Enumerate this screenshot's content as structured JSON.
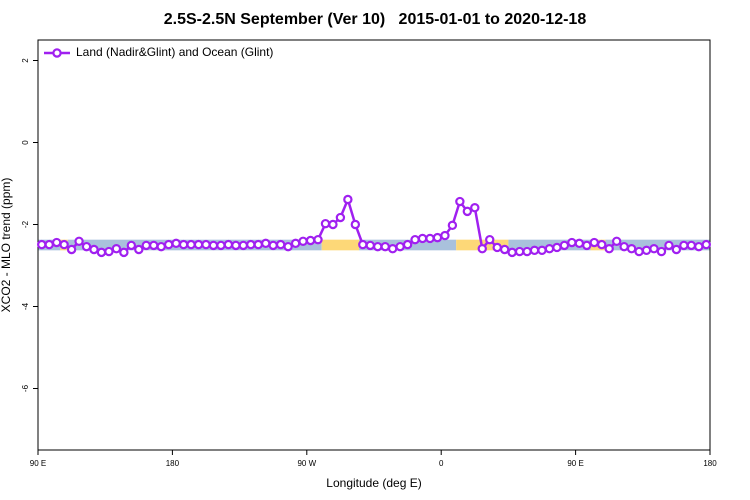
{
  "chart_data": {
    "type": "line",
    "title": "2.5S-2.5N September (Ver 10)   2015-01-01 to 2020-12-18",
    "x_label": "Longitude (deg E)",
    "y_label": "XCO2 - MLO trend (ppm)",
    "xlim": [
      90,
      540
    ],
    "xticks": [
      {
        "value": 90,
        "label": "90 E"
      },
      180,
      {
        "value": 270,
        "label": "90 W"
      },
      {
        "value": 360,
        "label": "0"
      },
      {
        "value": 450,
        "label": "90 E"
      },
      {
        "value": 540,
        "label": "180"
      }
    ],
    "ylim": [
      -7.5,
      2.5
    ],
    "yticks": [
      2,
      0,
      -2,
      -4,
      -6
    ],
    "legend": "top-left",
    "x": [
      92.5,
      97.5,
      102.5,
      107.5,
      112.5,
      117.5,
      122.5,
      127.5,
      132.5,
      137.5,
      142.5,
      147.5,
      152.5,
      157.5,
      162.5,
      167.5,
      172.5,
      177.5,
      182.5,
      187.5,
      192.5,
      197.5,
      202.5,
      207.5,
      212.5,
      217.5,
      222.5,
      227.5,
      232.5,
      237.5,
      242.5,
      247.5,
      252.5,
      257.5,
      262.5,
      267.5,
      272.5,
      277.5,
      282.5,
      287.5,
      292.5,
      297.5,
      302.5,
      307.5,
      312.5,
      317.5,
      322.5,
      327.5,
      332.5,
      337.5,
      342.5,
      347.5,
      352.5,
      357.5,
      362.5,
      367.5,
      372.5,
      377.5,
      382.5,
      387.5,
      392.5,
      397.5,
      402.5,
      407.5,
      412.5,
      417.5,
      422.5,
      427.5,
      432.5,
      437.5,
      442.5,
      447.5,
      452.5,
      457.5,
      462.5,
      467.5,
      472.5,
      477.5,
      482.5,
      487.5,
      492.5,
      497.5,
      502.5,
      507.5,
      512.5,
      517.5,
      522.5,
      527.5,
      532.5,
      537.5
    ],
    "series": [
      {
        "name": "Land (Nadir&Glint) and Ocean (Glint)",
        "color": "#a020f0",
        "values": [
          -2.49,
          -2.49,
          -2.44,
          -2.49,
          -2.61,
          -2.41,
          -2.54,
          -2.61,
          -2.68,
          -2.66,
          -2.59,
          -2.68,
          -2.51,
          -2.61,
          -2.51,
          -2.51,
          -2.54,
          -2.49,
          -2.46,
          -2.49,
          -2.49,
          -2.49,
          -2.49,
          -2.51,
          -2.51,
          -2.49,
          -2.51,
          -2.51,
          -2.49,
          -2.49,
          -2.46,
          -2.51,
          -2.49,
          -2.54,
          -2.46,
          -2.41,
          -2.39,
          -2.37,
          -1.98,
          -2.0,
          -1.83,
          -1.39,
          -2.0,
          -2.49,
          -2.51,
          -2.54,
          -2.54,
          -2.59,
          -2.54,
          -2.49,
          -2.37,
          -2.34,
          -2.34,
          -2.32,
          -2.27,
          -2.02,
          -1.44,
          -1.68,
          -1.59,
          -2.59,
          -2.37,
          -2.56,
          -2.61,
          -2.68,
          -2.66,
          -2.66,
          -2.63,
          -2.63,
          -2.59,
          -2.56,
          -2.51,
          -2.44,
          -2.46,
          -2.51,
          -2.44,
          -2.49,
          -2.59,
          -2.41,
          -2.54,
          -2.59,
          -2.66,
          -2.63,
          -2.59,
          -2.66,
          -2.51,
          -2.61,
          -2.51,
          -2.51,
          -2.54,
          -2.49
        ]
      }
    ],
    "band_ylim": [
      -2.63,
      -2.37
    ],
    "bands": [
      {
        "x": [
          90,
          105
        ],
        "color": "#a9c1dc"
      },
      {
        "x": [
          105,
          110
        ],
        "color": "#fdd878"
      },
      {
        "x": [
          110,
          280
        ],
        "color": "#a9c1dc"
      },
      {
        "x": [
          280,
          305
        ],
        "color": "#fdd878"
      },
      {
        "x": [
          305,
          370
        ],
        "color": "#a9c1dc"
      },
      {
        "x": [
          370,
          405
        ],
        "color": "#fdd878"
      },
      {
        "x": [
          405,
          460
        ],
        "color": "#a9c1dc"
      },
      {
        "x": [
          460,
          470
        ],
        "color": "#fdd878"
      },
      {
        "x": [
          470,
          540
        ],
        "color": "#a9c1dc"
      }
    ]
  }
}
